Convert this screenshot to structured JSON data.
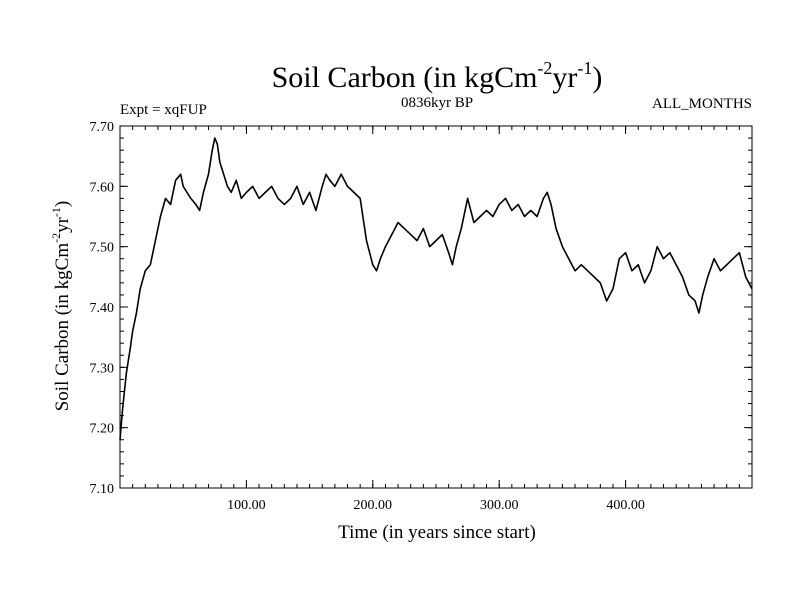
{
  "chart_data": {
    "type": "line",
    "title_main": "Soil Carbon (in kgCm",
    "title_exp1": "-2",
    "title_mid": "yr",
    "title_exp2": "-1",
    "title_end": ")",
    "subtitle_left": "Expt = xqFUP",
    "subtitle_center": "0836kyr BP",
    "subtitle_right": "ALL_MONTHS",
    "xlabel": "Time (in years since start)",
    "ylabel_main": "Soil Carbon (in kgCm",
    "ylabel_exp1": "-2",
    "ylabel_mid": "yr",
    "ylabel_exp2": "-1",
    "ylabel_end": ")",
    "xlim": [
      0,
      500
    ],
    "ylim": [
      7.1,
      7.7
    ],
    "xticks": [
      100,
      200,
      300,
      400
    ],
    "xtick_labels": [
      "100.00",
      "200.00",
      "300.00",
      "400.00"
    ],
    "yticks": [
      7.1,
      7.2,
      7.3,
      7.4,
      7.5,
      7.6,
      7.7
    ],
    "ytick_labels": [
      "7.10",
      "7.20",
      "7.30",
      "7.40",
      "7.50",
      "7.60",
      "7.70"
    ],
    "series": [
      {
        "name": "Soil Carbon",
        "color": "#000000",
        "x": [
          0,
          2,
          5,
          8,
          10,
          13,
          16,
          20,
          24,
          28,
          32,
          36,
          40,
          44,
          48,
          50,
          53,
          56,
          60,
          63,
          66,
          70,
          73,
          75,
          77,
          79,
          82,
          85,
          88,
          92,
          96,
          100,
          105,
          110,
          115,
          120,
          125,
          130,
          135,
          140,
          145,
          150,
          155,
          160,
          163,
          166,
          170,
          175,
          180,
          185,
          190,
          195,
          200,
          203,
          206,
          210,
          215,
          220,
          225,
          230,
          235,
          240,
          245,
          250,
          255,
          260,
          263,
          266,
          270,
          275,
          280,
          285,
          290,
          295,
          300,
          305,
          310,
          315,
          320,
          325,
          330,
          335,
          338,
          341,
          345,
          350,
          355,
          360,
          365,
          370,
          375,
          380,
          385,
          390,
          395,
          400,
          405,
          410,
          415,
          420,
          425,
          430,
          435,
          440,
          445,
          450,
          455,
          458,
          461,
          465,
          470,
          475,
          480,
          485,
          490,
          495,
          500
        ],
        "y": [
          7.18,
          7.23,
          7.29,
          7.33,
          7.36,
          7.39,
          7.43,
          7.46,
          7.47,
          7.51,
          7.55,
          7.58,
          7.57,
          7.61,
          7.62,
          7.6,
          7.59,
          7.58,
          7.57,
          7.56,
          7.59,
          7.62,
          7.66,
          7.68,
          7.67,
          7.64,
          7.62,
          7.6,
          7.59,
          7.61,
          7.58,
          7.59,
          7.6,
          7.58,
          7.59,
          7.6,
          7.58,
          7.57,
          7.58,
          7.6,
          7.57,
          7.59,
          7.56,
          7.6,
          7.62,
          7.61,
          7.6,
          7.62,
          7.6,
          7.59,
          7.58,
          7.51,
          7.47,
          7.46,
          7.48,
          7.5,
          7.52,
          7.54,
          7.53,
          7.52,
          7.51,
          7.53,
          7.5,
          7.51,
          7.52,
          7.49,
          7.47,
          7.5,
          7.53,
          7.58,
          7.54,
          7.55,
          7.56,
          7.55,
          7.57,
          7.58,
          7.56,
          7.57,
          7.55,
          7.56,
          7.55,
          7.58,
          7.59,
          7.57,
          7.53,
          7.5,
          7.48,
          7.46,
          7.47,
          7.46,
          7.45,
          7.44,
          7.41,
          7.43,
          7.48,
          7.49,
          7.46,
          7.47,
          7.44,
          7.46,
          7.5,
          7.48,
          7.49,
          7.47,
          7.45,
          7.42,
          7.41,
          7.39,
          7.42,
          7.45,
          7.48,
          7.46,
          7.47,
          7.48,
          7.49,
          7.45,
          7.43
        ]
      }
    ]
  }
}
